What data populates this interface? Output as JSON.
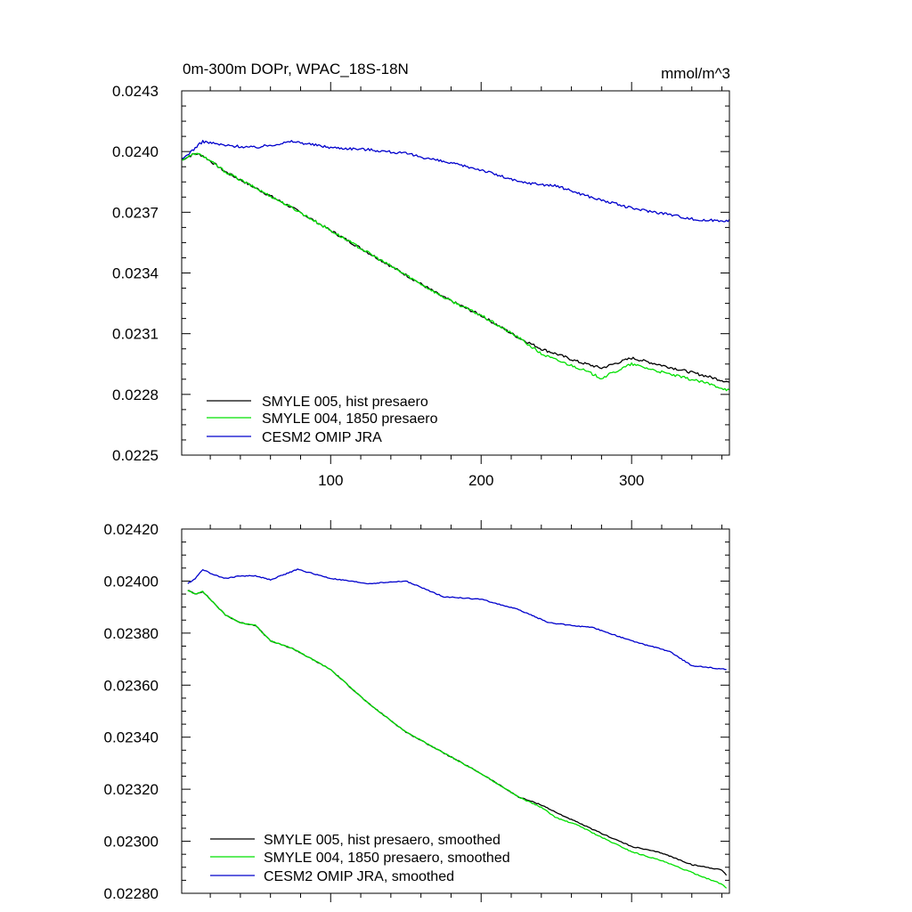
{
  "chart_data": [
    {
      "type": "line",
      "title": "0m-300m DOPr, WPAC_18S-18N",
      "units": "mmol/m^3",
      "xlabel": "",
      "ylabel": "",
      "xlim": [
        1,
        365
      ],
      "ylim": [
        0.0225,
        0.0243
      ],
      "xticks": [
        100,
        200,
        300
      ],
      "xtick_labels": [
        "100",
        "200",
        "300"
      ],
      "yticks": [
        0.0225,
        0.0228,
        0.0231,
        0.0234,
        0.0237,
        0.024,
        0.0243
      ],
      "ytick_labels": [
        "0.0225",
        "0.0228",
        "0.0231",
        "0.0234",
        "0.0237",
        "0.0240",
        "0.0243"
      ],
      "grid": false,
      "legend_position": "bottom-left",
      "series": [
        {
          "name": "SMYLE 005, hist presaero",
          "color": "#000000",
          "x": [
            1,
            10,
            15,
            30,
            50,
            75,
            100,
            125,
            150,
            175,
            200,
            225,
            240,
            250,
            265,
            280,
            300,
            325,
            350,
            365
          ],
          "values": [
            0.02396,
            0.02399,
            0.02398,
            0.0239,
            0.02382,
            0.02372,
            0.02361,
            0.0235,
            0.02339,
            0.02328,
            0.02319,
            0.02308,
            0.023025,
            0.023,
            0.02296,
            0.02293,
            0.02298,
            0.022935,
            0.02289,
            0.02286
          ]
        },
        {
          "name": "SMYLE 004, 1850 presaero",
          "color": "#00e000",
          "x": [
            1,
            10,
            15,
            30,
            50,
            75,
            100,
            125,
            150,
            175,
            200,
            225,
            240,
            250,
            265,
            280,
            300,
            325,
            350,
            365
          ],
          "values": [
            0.02396,
            0.02399,
            0.02398,
            0.0239,
            0.02382,
            0.02372,
            0.02361,
            0.0235,
            0.02339,
            0.02328,
            0.02319,
            0.02308,
            0.023,
            0.02297,
            0.02293,
            0.02288,
            0.02295,
            0.0229,
            0.022855,
            0.02282
          ]
        },
        {
          "name": "CESM2 OMIP JRA",
          "color": "#0000cc",
          "x": [
            1,
            15,
            30,
            50,
            75,
            100,
            125,
            150,
            175,
            200,
            225,
            250,
            275,
            300,
            325,
            345,
            365
          ],
          "values": [
            0.02396,
            0.02405,
            0.02403,
            0.02402,
            0.02405,
            0.02402,
            0.02401,
            0.02399,
            0.02395,
            0.02391,
            0.02385,
            0.02383,
            0.02377,
            0.02372,
            0.02369,
            0.02366,
            0.02366
          ]
        }
      ]
    },
    {
      "type": "line",
      "title": "",
      "xlabel": "",
      "ylabel": "",
      "xlim": [
        1,
        365
      ],
      "ylim": [
        0.0228,
        0.0242
      ],
      "xticks": [
        100,
        200,
        300
      ],
      "xtick_labels": [],
      "yticks": [
        0.0228,
        0.023,
        0.0232,
        0.0234,
        0.0236,
        0.0238,
        0.024,
        0.0242
      ],
      "ytick_labels": [
        "0.02280",
        "0.02300",
        "0.02320",
        "0.02340",
        "0.02360",
        "0.02380",
        "0.02400",
        "0.02420"
      ],
      "grid": false,
      "legend_position": "bottom-left",
      "series": [
        {
          "name": "SMYLE 005, hist presaero, smoothed",
          "color": "#000000",
          "x": [
            5,
            10,
            15,
            20,
            30,
            40,
            50,
            60,
            75,
            100,
            125,
            150,
            175,
            200,
            225,
            240,
            250,
            265,
            280,
            300,
            320,
            340,
            360,
            363
          ],
          "values": [
            0.023965,
            0.02395,
            0.02396,
            0.02393,
            0.02387,
            0.02384,
            0.02383,
            0.02377,
            0.02374,
            0.02366,
            0.02353,
            0.02342,
            0.02334,
            0.02326,
            0.02317,
            0.02314,
            0.02311,
            0.02307,
            0.02303,
            0.02298,
            0.022955,
            0.02291,
            0.02289,
            0.02287
          ]
        },
        {
          "name": "SMYLE 004, 1850 presaero, smoothed",
          "color": "#00e000",
          "x": [
            5,
            10,
            15,
            20,
            30,
            40,
            50,
            60,
            75,
            100,
            125,
            150,
            175,
            200,
            225,
            240,
            250,
            265,
            280,
            300,
            320,
            340,
            360,
            363
          ],
          "values": [
            0.023965,
            0.02395,
            0.02396,
            0.02393,
            0.02387,
            0.02384,
            0.02383,
            0.02377,
            0.02374,
            0.02366,
            0.02353,
            0.02342,
            0.02334,
            0.02326,
            0.02317,
            0.02313,
            0.02309,
            0.02306,
            0.023015,
            0.02296,
            0.022925,
            0.02288,
            0.022835,
            0.02282
          ]
        },
        {
          "name": "CESM2 OMIP JRA, smoothed",
          "color": "#0000cc",
          "x": [
            5,
            10,
            15,
            20,
            30,
            40,
            50,
            60,
            78,
            100,
            125,
            150,
            175,
            200,
            225,
            245,
            260,
            275,
            300,
            325,
            340,
            363
          ],
          "values": [
            0.02399,
            0.02401,
            0.024045,
            0.02403,
            0.02401,
            0.02402,
            0.02402,
            0.024005,
            0.024045,
            0.02401,
            0.02399,
            0.024,
            0.02394,
            0.02393,
            0.02389,
            0.02384,
            0.02383,
            0.02382,
            0.02377,
            0.02373,
            0.023675,
            0.02366
          ]
        }
      ]
    }
  ]
}
